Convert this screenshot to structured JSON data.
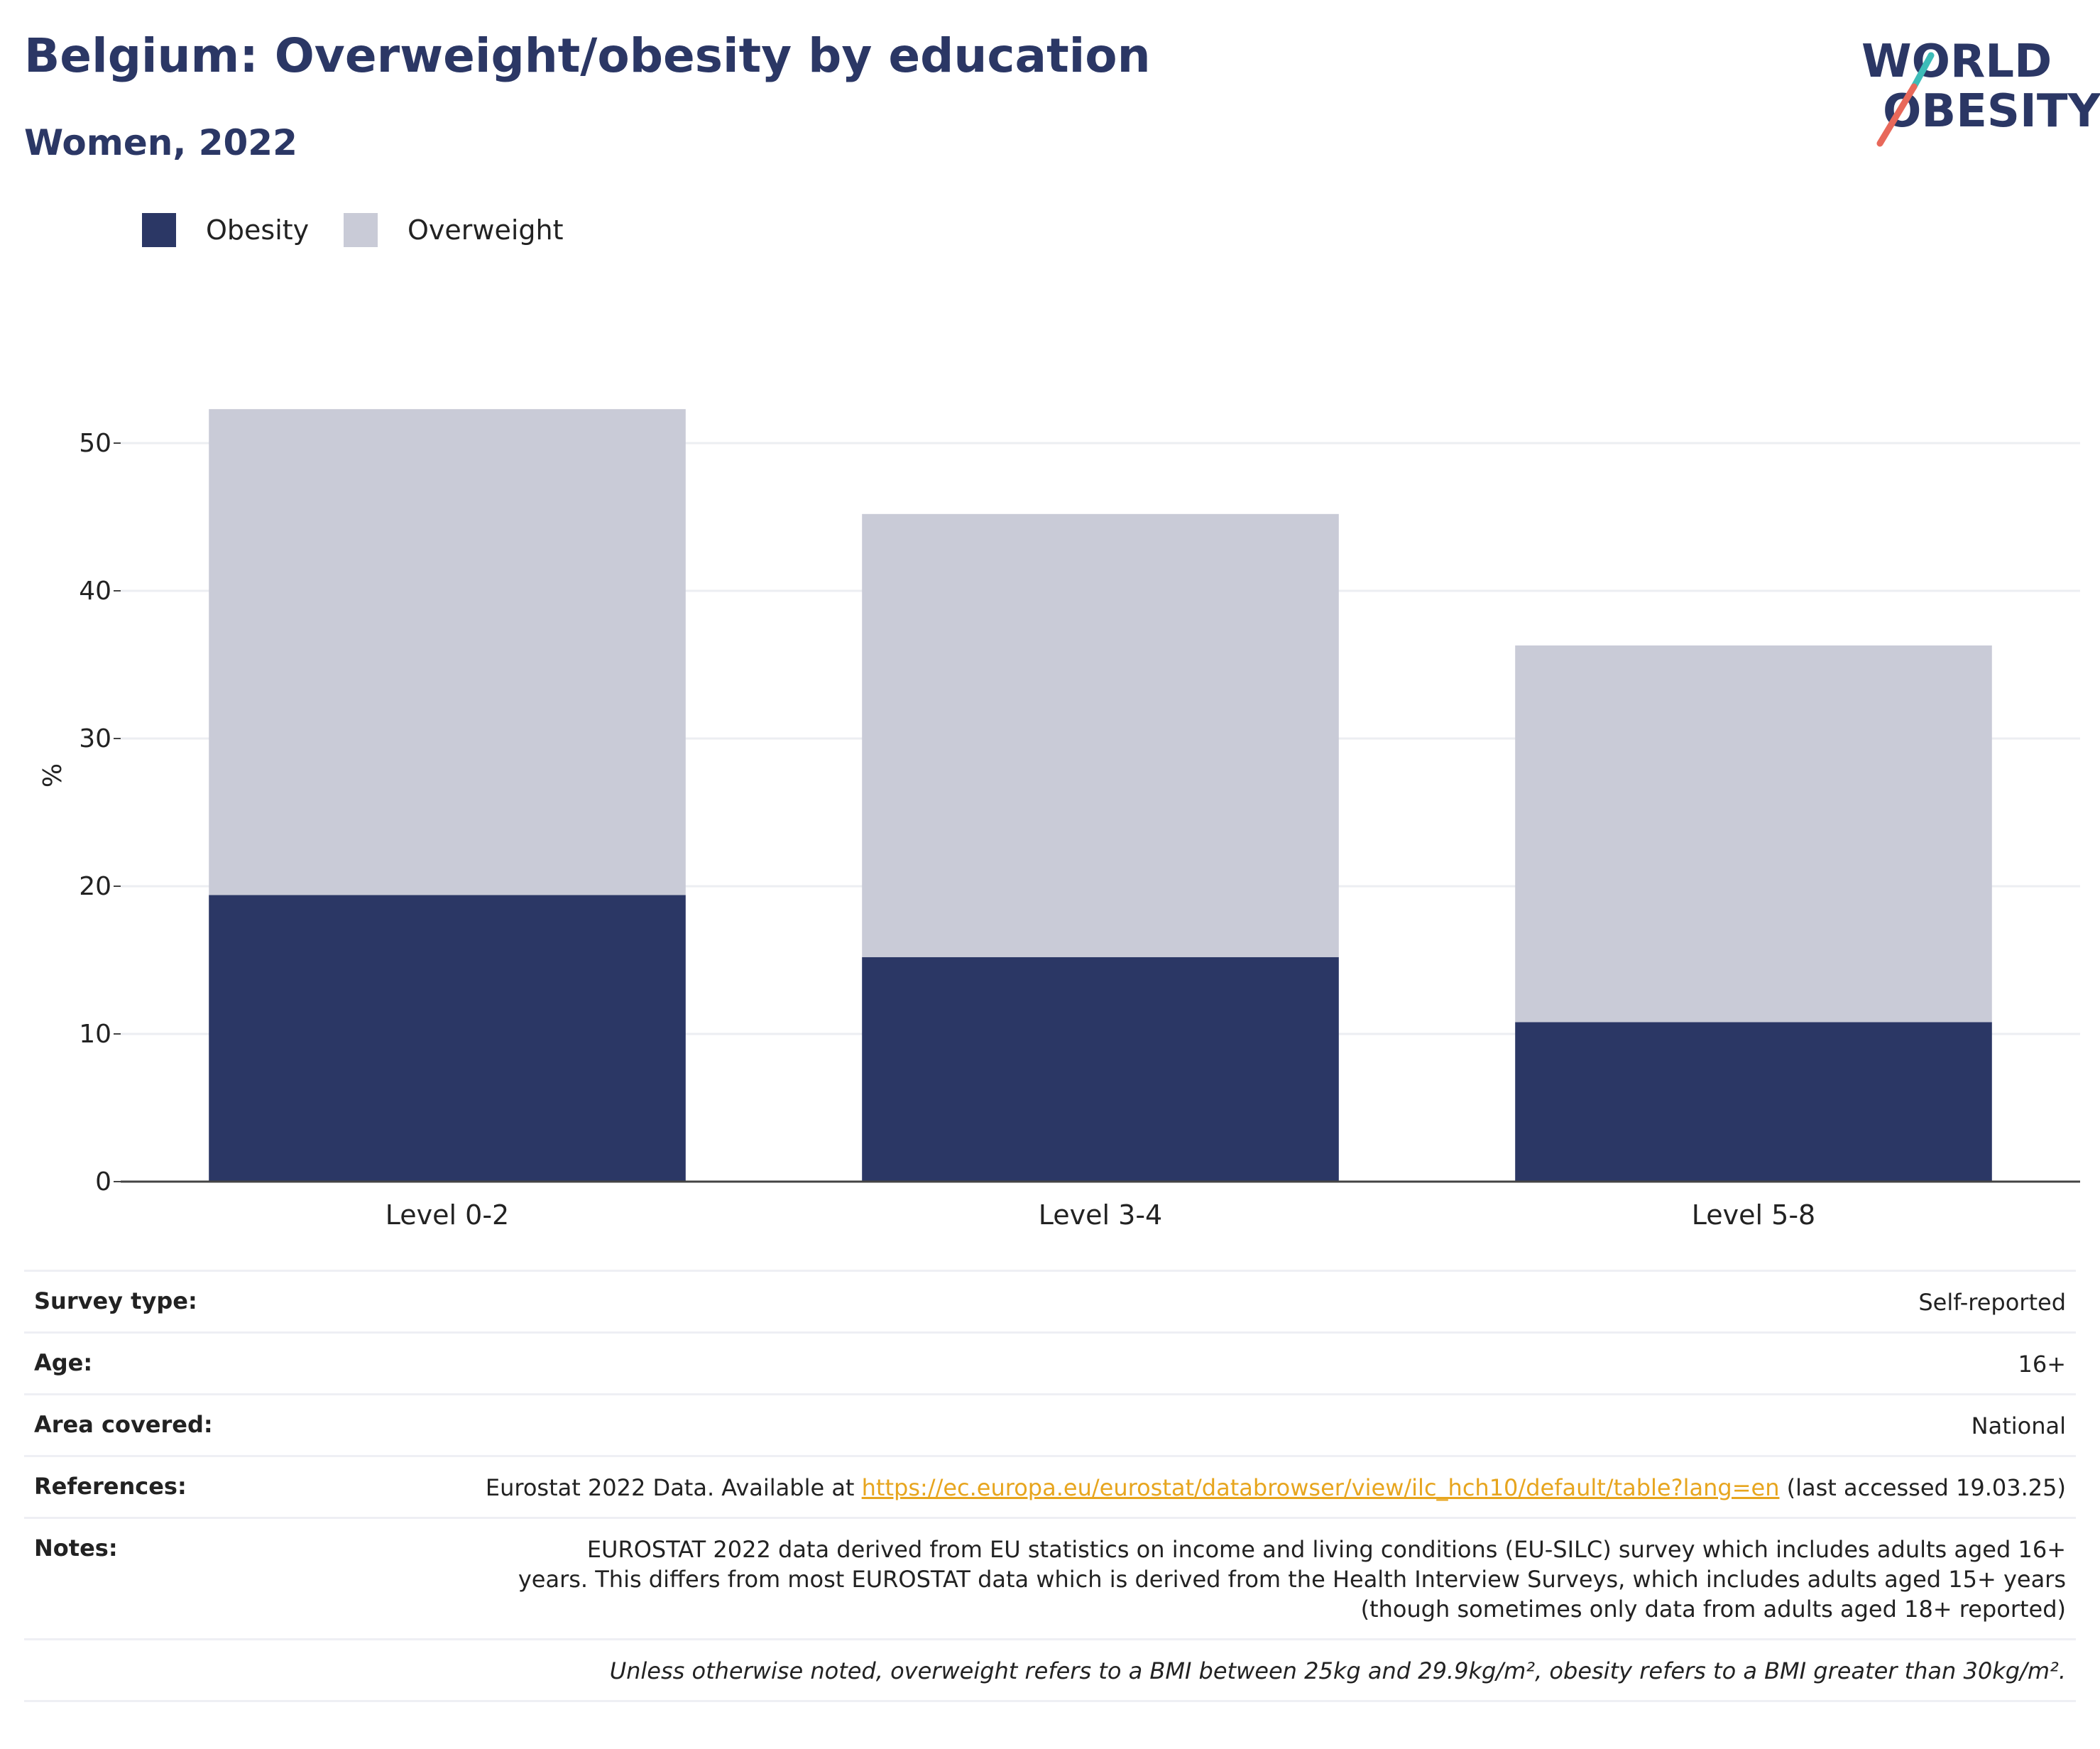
{
  "header": {
    "title": "Belgium: Overweight/obesity by education",
    "subtitle": "Women, 2022"
  },
  "logo": {
    "line1": "WORLD",
    "line2": "OBESITY",
    "colors": {
      "text": "#2b3765",
      "slash_top": "#3dbcb8",
      "slash_bottom": "#e8685a"
    }
  },
  "legend": {
    "items": [
      {
        "label": "Obesity",
        "color": "#2b3765"
      },
      {
        "label": "Overweight",
        "color": "#c9cbd7"
      }
    ]
  },
  "chart_data": {
    "type": "bar",
    "stacked": true,
    "categories": [
      "Level 0-2",
      "Level 3-4",
      "Level 5-8"
    ],
    "series": [
      {
        "name": "Obesity",
        "values": [
          19.4,
          15.2,
          10.8
        ],
        "color": "#2b3765"
      },
      {
        "name": "Overweight",
        "values": [
          32.9,
          30.0,
          25.5
        ],
        "color": "#c9cbd7"
      }
    ],
    "ylabel": "%",
    "ylim": [
      0,
      55
    ],
    "yticks": [
      0,
      10,
      20,
      30,
      40,
      50
    ],
    "grid": true,
    "legend_position": "top-left"
  },
  "info": {
    "survey_type": {
      "label": "Survey type:",
      "value": "Self-reported"
    },
    "age": {
      "label": "Age:",
      "value": "16+"
    },
    "area": {
      "label": "Area covered:",
      "value": "National"
    },
    "references": {
      "label": "References:",
      "prefix": "Eurostat 2022 Data. Available at ",
      "link": "https://ec.europa.eu/eurostat/databrowser/view/ilc_hch10/default/table?lang=en",
      "suffix": " (last accessed 19.03.25)"
    },
    "notes": {
      "label": "Notes:",
      "value": "EUROSTAT 2022 data derived from EU statistics on income and living conditions (EU-SILC) survey which includes adults aged 16+ years. This differs from most EUROSTAT data which is derived from the Health Interview Surveys, which includes adults aged 15+ years (though sometimes only data from adults aged 18+ reported)"
    },
    "footnote": "Unless otherwise noted, overweight refers to a BMI between 25kg and 29.9kg/m², obesity refers to a BMI greater than 30kg/m²."
  }
}
